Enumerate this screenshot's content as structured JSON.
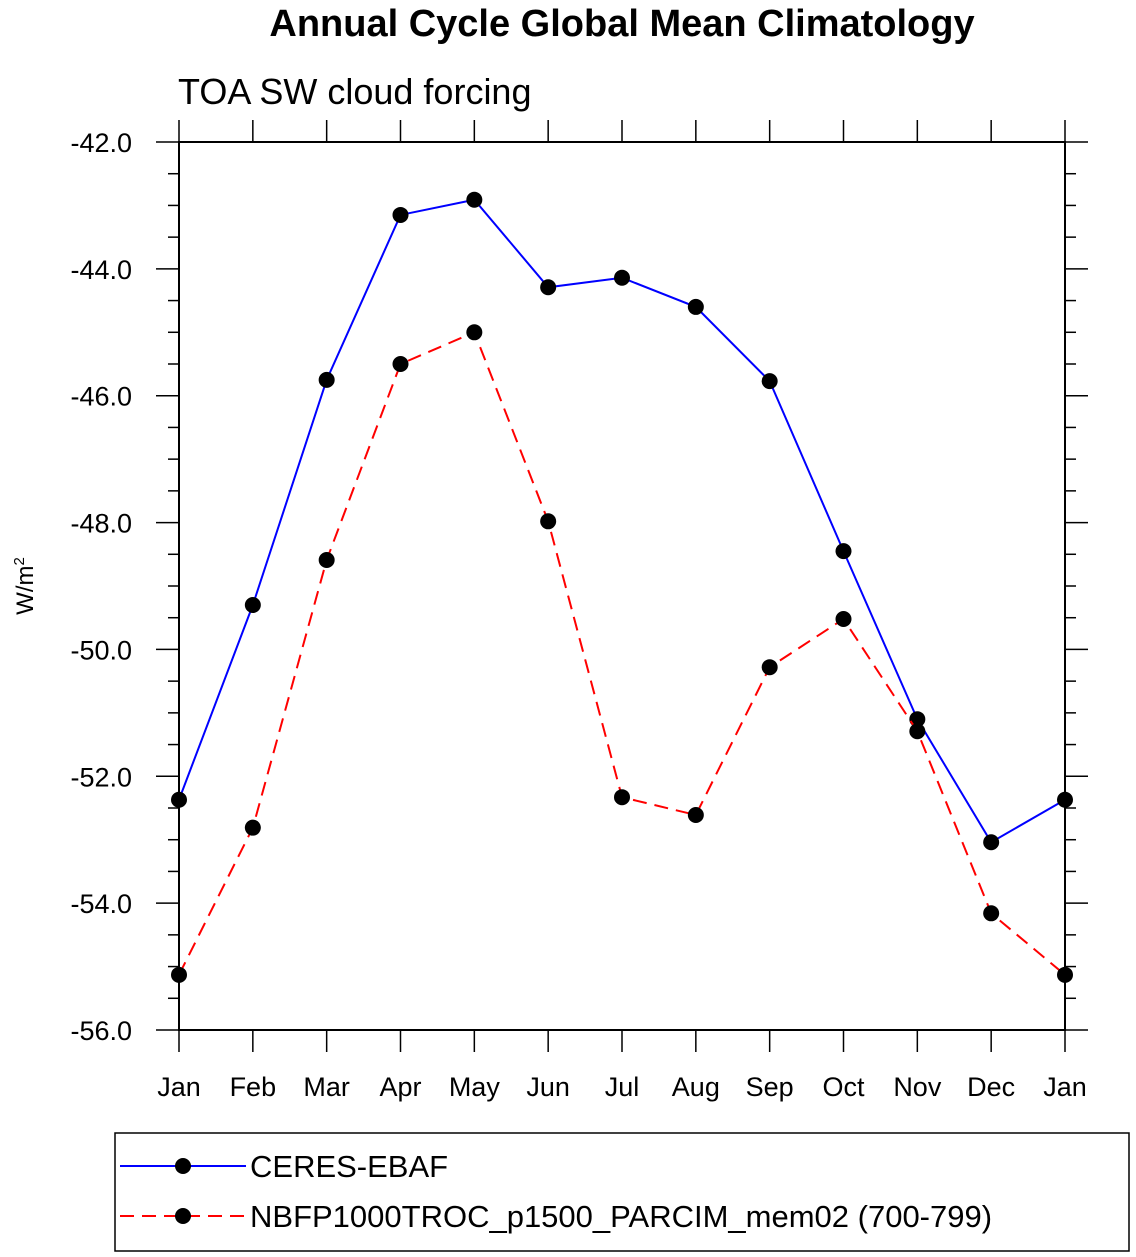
{
  "chart_data": {
    "type": "line",
    "title": "Annual Cycle Global Mean Climatology",
    "subtitle": "TOA SW cloud forcing",
    "ylabel": "W/m",
    "ylabel_sup": "2",
    "ylim": [
      -56,
      -42
    ],
    "yticks": [
      "-42.0",
      "-44.0",
      "-46.0",
      "-48.0",
      "-50.0",
      "-52.0",
      "-54.0",
      "-56.0"
    ],
    "categories": [
      "Jan",
      "Feb",
      "Mar",
      "Apr",
      "May",
      "Jun",
      "Jul",
      "Aug",
      "Sep",
      "Oct",
      "Nov",
      "Dec",
      "Jan"
    ],
    "series": [
      {
        "name": "CERES-EBAF",
        "color": "#0000ff",
        "dash": "solid",
        "values": [
          -52.37,
          -49.3,
          -45.75,
          -43.15,
          -42.91,
          -44.29,
          -44.14,
          -44.6,
          -45.77,
          -48.45,
          -51.1,
          -53.04,
          -52.37
        ]
      },
      {
        "name": "NBFP1000TROC_p1500_PARCIM_mem02 (700-799)",
        "color": "#ff0000",
        "dash": "dashed",
        "values": [
          -55.13,
          -52.81,
          -48.59,
          -45.5,
          -45.0,
          -47.98,
          -52.33,
          -52.61,
          -50.28,
          -49.52,
          -51.29,
          -54.16,
          -55.13
        ]
      }
    ],
    "legend_position": "bottom"
  }
}
